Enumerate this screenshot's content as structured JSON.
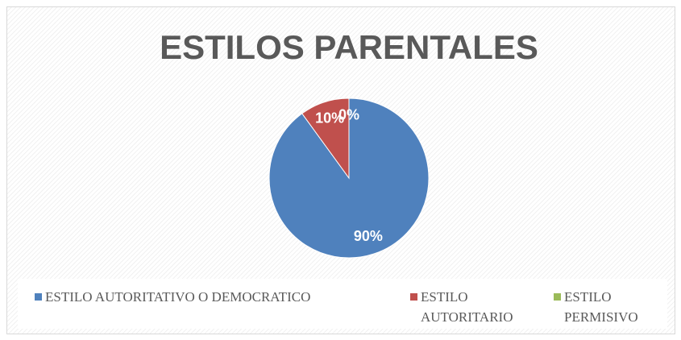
{
  "chart_data": {
    "type": "pie",
    "title": "ESTILOS PARENTALES",
    "categories": [
      "ESTILO AUTORITATIVO O DEMOCRATICO",
      "ESTILO AUTORITARIO",
      "ESTILO PERMISIVO"
    ],
    "values": [
      90,
      10,
      0
    ],
    "value_labels": [
      "90%",
      "10%",
      "0%"
    ],
    "colors": [
      "#4f81bd",
      "#c0504d",
      "#9bbb59"
    ],
    "legend": "bottom"
  }
}
